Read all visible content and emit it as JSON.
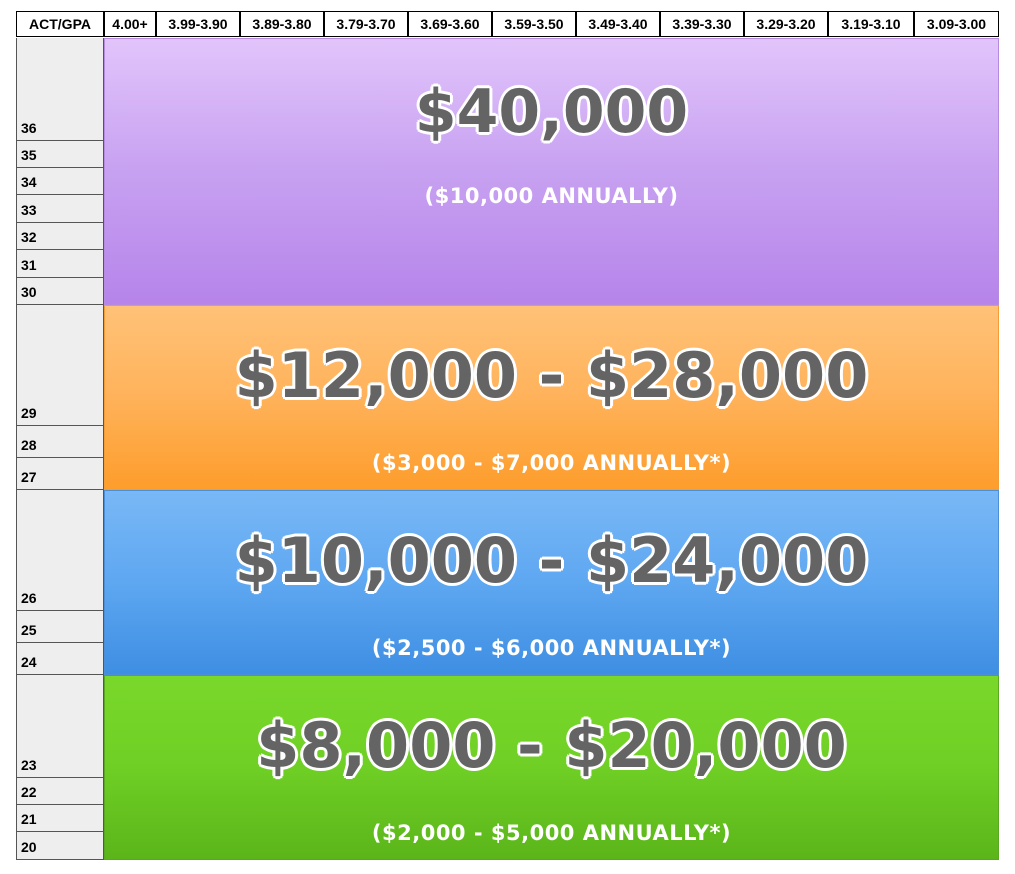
{
  "header": {
    "corner": "ACT/GPA",
    "gpa_ranges": [
      "4.00+",
      "3.99-3.90",
      "3.89-3.80",
      "3.79-3.70",
      "3.69-3.60",
      "3.59-3.50",
      "3.49-3.40",
      "3.39-3.30",
      "3.29-3.20",
      "3.19-3.10",
      "3.09-3.00"
    ]
  },
  "act_scores": [
    "36",
    "35",
    "34",
    "33",
    "32",
    "31",
    "30",
    "29",
    "28",
    "27",
    "26",
    "25",
    "24",
    "23",
    "22",
    "21",
    "20"
  ],
  "tiers": [
    {
      "amount": "$40,000",
      "annual": "($10,000 ANNUALLY)",
      "color": "#c9a3f2"
    },
    {
      "amount": "$12,000 - $28,000",
      "annual": "($3,000 - $7,000 ANNUALLY*)",
      "color": "#ffb25a"
    },
    {
      "amount": "$10,000 - $24,000",
      "annual": "($2,500 - $6,000 ANNUALLY*)",
      "color": "#5ea7f1"
    },
    {
      "amount": "$8,000 - $20,000",
      "annual": "($2,000 - $5,000 ANNUALLY*)",
      "color": "#6fcf25"
    }
  ]
}
